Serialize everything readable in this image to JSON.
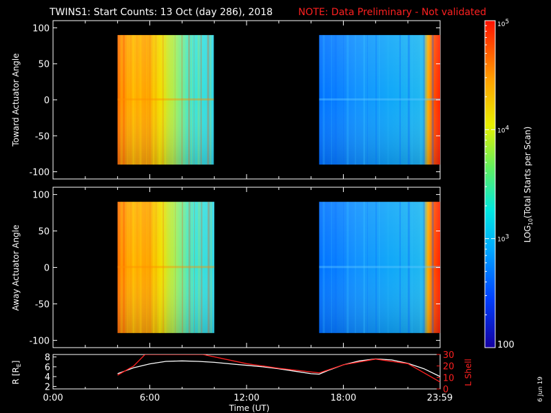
{
  "title": "TWINS1: Start Counts: 13 Oct (day 286), 2018",
  "note": "NOTE: Data Preliminary - Not validated",
  "stamp": "6 Jun 19",
  "colors": {
    "note": "#ff2020",
    "orbit_r": "#ffffff",
    "orbit_l": "#ff2020",
    "axes": "#ffffff"
  },
  "chart_data": [
    {
      "type": "heatmap",
      "ylabel": "Toward Actuator Angle",
      "ylim": [
        -110,
        110
      ],
      "yticks": [
        "100",
        "50",
        "0",
        "-50",
        "-100"
      ],
      "ytick_values": [
        100,
        50,
        0,
        -50,
        -100
      ],
      "angle_range": [
        -90,
        90
      ],
      "segments": [
        {
          "start": "04:00",
          "end": "09:58",
          "level": "high",
          "counts_log10": 4.3
        },
        {
          "start": "16:30",
          "end": "24:00",
          "level": "low",
          "counts_log10": 2.6
        }
      ]
    },
    {
      "type": "heatmap",
      "ylabel": "Away Actuator Angle",
      "ylim": [
        -110,
        110
      ],
      "yticks": [
        "100",
        "50",
        "0",
        "-50",
        "-100"
      ],
      "ytick_values": [
        100,
        50,
        0,
        -50,
        -100
      ],
      "angle_range": [
        -90,
        90
      ],
      "segments": [
        {
          "start": "04:00",
          "end": "10:00",
          "level": "high",
          "counts_log10": 4.2
        },
        {
          "start": "16:30",
          "end": "24:00",
          "level": "low",
          "counts_log10": 2.6
        }
      ]
    },
    {
      "type": "line",
      "ylabel_left_base": "R [R",
      "ylabel_left_sub": "E",
      "ylabel_left_close": "]",
      "ylabel_right": "L Shell",
      "yticks_left": [
        "8",
        "6",
        "4",
        "2"
      ],
      "ytick_left_values": [
        8,
        6,
        4,
        2
      ],
      "ylim_left": [
        1.5,
        8.5
      ],
      "yticks_right": [
        "30",
        "20",
        "10",
        "0"
      ],
      "ytick_right_values": [
        30,
        20,
        10,
        0
      ],
      "ylim_right": [
        0,
        30
      ],
      "xlabel": "Time (UT)",
      "xticks": [
        "0:00",
        "6:00",
        "12:00",
        "18:00",
        "23:59"
      ],
      "xtick_values": [
        0,
        6,
        12,
        18,
        23.98
      ],
      "xlim": [
        0,
        24
      ],
      "series": [
        {
          "axis": "left",
          "color": "#ffffff",
          "x": [
            4,
            5,
            6,
            7,
            8,
            9,
            10,
            11,
            12,
            13,
            14,
            15,
            16,
            16.5,
            17,
            18,
            19,
            20,
            21,
            22,
            23,
            24
          ],
          "y": [
            4.6,
            5.8,
            6.6,
            7.1,
            7.2,
            7.1,
            6.9,
            6.6,
            6.3,
            6.0,
            5.6,
            5.1,
            4.6,
            4.5,
            5.2,
            6.4,
            7.2,
            7.6,
            7.4,
            6.7,
            5.6,
            4.0
          ]
        },
        {
          "axis": "right",
          "color": "#ff2020",
          "x": [
            4,
            5,
            5.7,
            9.3,
            12,
            14,
            16.5,
            18,
            20,
            22,
            24
          ],
          "y": [
            12,
            20,
            30,
            30,
            22,
            18,
            14,
            21,
            26,
            22,
            6
          ]
        }
      ]
    }
  ],
  "colorbar": {
    "label_base": "LOG",
    "label_sub": "10",
    "label_rest": "(Total Starts per Scan)",
    "range_log10": [
      2,
      5
    ],
    "ticks": [
      {
        "value": 5,
        "base": "10",
        "exp": "5"
      },
      {
        "value": 4,
        "base": "10",
        "exp": "4"
      },
      {
        "value": 3,
        "base": "10",
        "exp": "3"
      },
      {
        "value": 2,
        "base": "100",
        "exp": ""
      }
    ]
  }
}
